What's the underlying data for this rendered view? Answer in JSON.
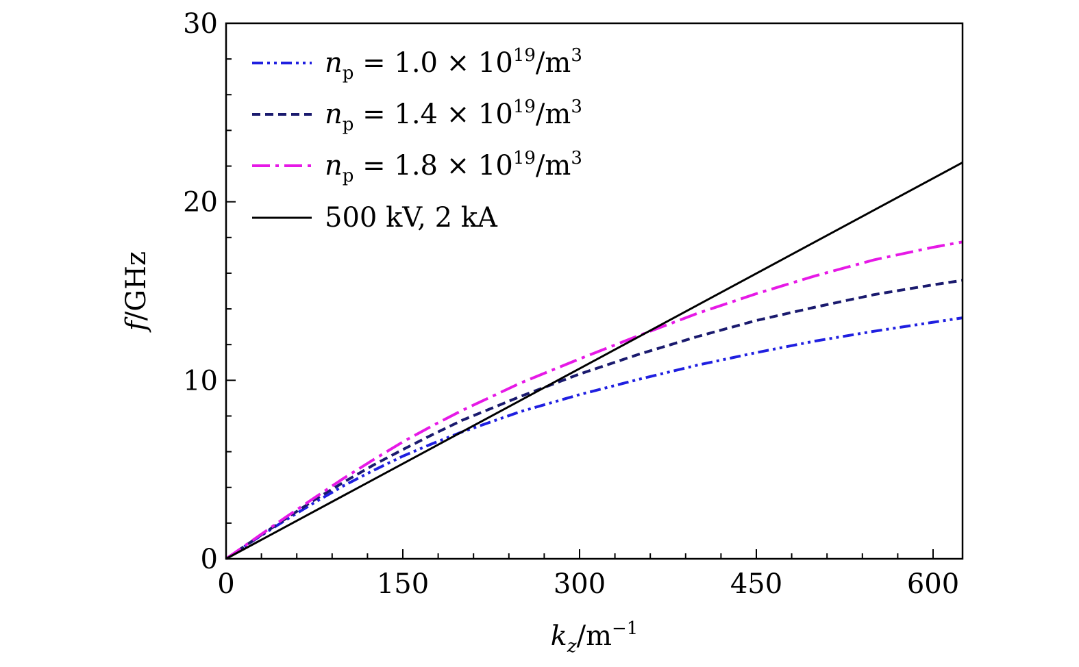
{
  "chart_data": {
    "type": "line",
    "title": "",
    "xlabel": {
      "main": "k",
      "sub": "z",
      "unit": "/m",
      "sup": "−1"
    },
    "ylabel": {
      "main": "f",
      "unit": "/GHz"
    },
    "xlim": [
      0,
      625
    ],
    "ylim": [
      0,
      30
    ],
    "xticks": [
      0,
      150,
      300,
      450,
      600
    ],
    "xtick_labels": [
      "0",
      "150",
      "300",
      "450",
      "600"
    ],
    "yticks": [
      0,
      10,
      20,
      30
    ],
    "ytick_labels": [
      "0",
      "10",
      "20",
      "30"
    ],
    "x_minor_step": 30,
    "y_minor_step": 2,
    "grid": false,
    "legend_position": "top-left",
    "series": [
      {
        "name": "n_p = 1.0×10^19/m^3",
        "label": {
          "var": "n",
          "sub": "p",
          "eq": " = 1.0 × 10",
          "exp": "19",
          "unit": "/m",
          "unit_exp": "3"
        },
        "color": "#1f1fe0",
        "style": "dash-dot-dot",
        "x": [
          0,
          25,
          50,
          75,
          100,
          125,
          150,
          175,
          200,
          250,
          300,
          350,
          400,
          450,
          500,
          550,
          600,
          625
        ],
        "y": [
          0,
          1.1,
          2.15,
          3.15,
          4.1,
          4.95,
          5.75,
          6.45,
          7.1,
          8.25,
          9.2,
          10.05,
          10.85,
          11.55,
          12.2,
          12.75,
          13.25,
          13.5
        ]
      },
      {
        "name": "n_p = 1.4×10^19/m^3",
        "label": {
          "var": "n",
          "sub": "p",
          "eq": " = 1.4 × 10",
          "exp": "19",
          "unit": "/m",
          "unit_exp": "3"
        },
        "color": "#1a1a6e",
        "style": "dash",
        "x": [
          0,
          25,
          50,
          75,
          100,
          125,
          150,
          175,
          200,
          250,
          300,
          350,
          400,
          450,
          500,
          550,
          600,
          625
        ],
        "y": [
          0,
          1.12,
          2.22,
          3.3,
          4.3,
          5.25,
          6.12,
          6.95,
          7.75,
          9.1,
          10.35,
          11.45,
          12.45,
          13.35,
          14.1,
          14.8,
          15.35,
          15.6
        ]
      },
      {
        "name": "n_p = 1.8×10^19/m^3",
        "label": {
          "var": "n",
          "sub": "p",
          "eq": " = 1.8 × 10",
          "exp": "19",
          "unit": "/m",
          "unit_exp": "3"
        },
        "color": "#e619e6",
        "style": "dash-dot",
        "x": [
          0,
          25,
          50,
          75,
          100,
          125,
          150,
          175,
          200,
          250,
          300,
          350,
          400,
          450,
          500,
          550,
          600,
          625
        ],
        "y": [
          0,
          1.15,
          2.3,
          3.42,
          4.52,
          5.55,
          6.55,
          7.45,
          8.3,
          9.85,
          11.2,
          12.5,
          13.75,
          14.85,
          15.85,
          16.75,
          17.45,
          17.75
        ]
      },
      {
        "name": "500 kV, 2 kA",
        "label": {
          "text": "500 kV, 2 kA"
        },
        "color": "#000000",
        "style": "solid",
        "x": [
          0,
          625
        ],
        "y": [
          0,
          22.2
        ]
      }
    ]
  }
}
